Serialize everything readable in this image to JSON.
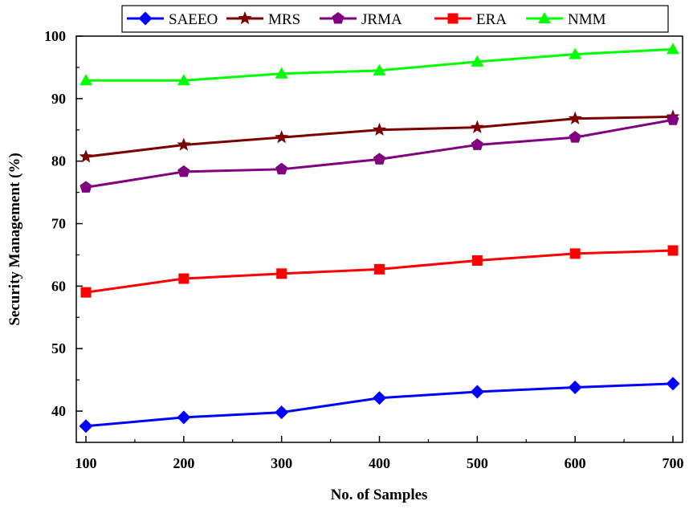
{
  "chart_data": {
    "type": "line",
    "xlabel": "No. of Samples",
    "ylabel": "Security Management (%)",
    "x": [
      100,
      200,
      300,
      400,
      500,
      600,
      700
    ],
    "xlim": [
      100,
      700
    ],
    "ylim": [
      35,
      100
    ],
    "xticks": [
      100,
      200,
      300,
      400,
      500,
      600,
      700
    ],
    "yticks": [
      40,
      50,
      60,
      70,
      80,
      90,
      100
    ],
    "grid": false,
    "legend_position": "top",
    "series": [
      {
        "name": "SAEEO",
        "color": "#0000ff",
        "marker": "diamond",
        "values": [
          37.6,
          39.0,
          39.8,
          42.1,
          43.1,
          43.8,
          44.4
        ]
      },
      {
        "name": "MRS",
        "color": "#7b0000",
        "marker": "star",
        "values": [
          80.7,
          82.6,
          83.8,
          85.0,
          85.4,
          86.8,
          87.1
        ]
      },
      {
        "name": "JRMA",
        "color": "#800080",
        "marker": "pentagon",
        "values": [
          75.8,
          78.3,
          78.7,
          80.3,
          82.6,
          83.8,
          86.6
        ]
      },
      {
        "name": "ERA",
        "color": "#ff0000",
        "marker": "square",
        "values": [
          59.0,
          61.2,
          62.0,
          62.7,
          64.1,
          65.2,
          65.7
        ]
      },
      {
        "name": "NMM",
        "color": "#00ff00",
        "marker": "triangle",
        "values": [
          92.9,
          92.9,
          94.0,
          94.5,
          95.9,
          97.1,
          97.9
        ]
      }
    ]
  }
}
